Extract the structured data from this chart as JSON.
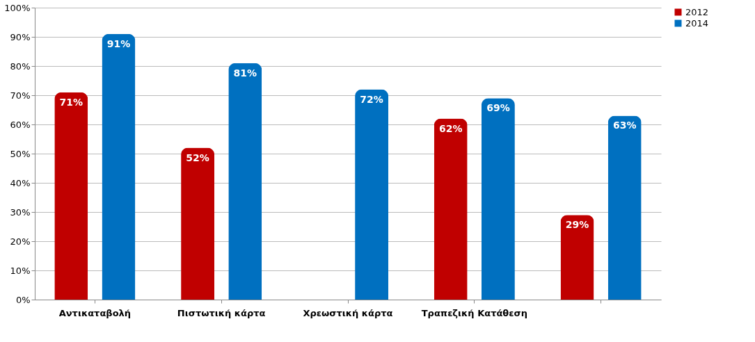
{
  "chart_data": {
    "type": "bar",
    "categories": [
      "Αντικαταβολή",
      "Πιστωτική κάρτα",
      "Χρεωστική κάρτα",
      "Τραπεζική Κατάθεση",
      null
    ],
    "series": [
      {
        "name": "2012",
        "color": "#c00000",
        "values": [
          71,
          52,
          null,
          62,
          29
        ],
        "value_labels": [
          "71%",
          "52%",
          null,
          "62%",
          "29%"
        ]
      },
      {
        "name": "2014",
        "color": "#0070c0",
        "values": [
          91,
          81,
          72,
          69,
          63
        ],
        "value_labels": [
          "91%",
          "81%",
          "72%",
          "69%",
          "63%"
        ]
      }
    ],
    "ylim": [
      0,
      100
    ],
    "yticks": [
      {
        "value": 0,
        "label": "0%"
      },
      {
        "value": 10,
        "label": "10%"
      },
      {
        "value": 20,
        "label": "20%"
      },
      {
        "value": 30,
        "label": "30%"
      },
      {
        "value": 40,
        "label": "40%"
      },
      {
        "value": 50,
        "label": "50%"
      },
      {
        "value": 60,
        "label": "60%"
      },
      {
        "value": 70,
        "label": "70%"
      },
      {
        "value": 80,
        "label": "80%"
      },
      {
        "value": 90,
        "label": "90%"
      },
      {
        "value": 100,
        "label": "100%"
      }
    ],
    "grid": "y",
    "legend": "right"
  }
}
